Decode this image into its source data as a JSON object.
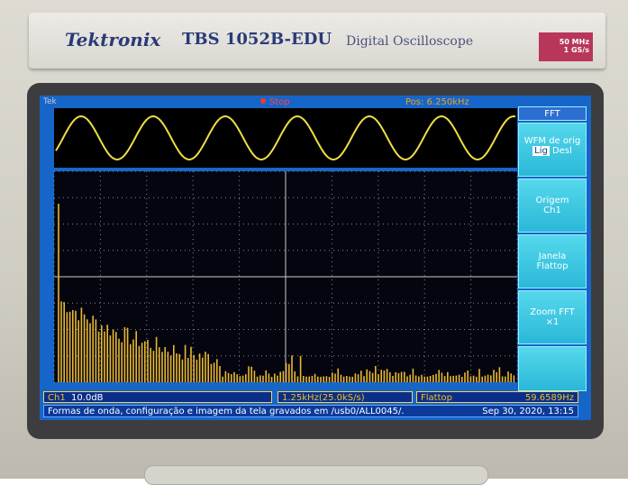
{
  "header": {
    "brand": "Tektronix",
    "model": "TBS 1052B-EDU",
    "product": "Digital Oscilloscope",
    "bandwidth": "50 MHz",
    "sample_rate": "1 GS/s"
  },
  "screen": {
    "top": {
      "brand": "Tek",
      "state": "Stop",
      "position": "Pos: 6.250kHz"
    },
    "menu": {
      "title": "FFT",
      "items": [
        {
          "label": "WFM de orig",
          "options": [
            "Lig",
            "Desl"
          ]
        },
        {
          "label": "Origem",
          "value": "Ch1"
        },
        {
          "label": "Janela",
          "value": "Flattop"
        },
        {
          "label": "Zoom FFT",
          "value": "×1"
        }
      ]
    },
    "status": {
      "channel": "Ch1",
      "scale": "10.0dB",
      "timebase": "1.25kHz(25.0kS/s)",
      "window": "Flattop",
      "frequency": "59.6589Hz"
    },
    "message": {
      "text": "Formas de onda, configuração e imagem da tela gravados em /usb0/ALL0045/.",
      "timestamp": "Sep 30, 2020, 13:15"
    }
  }
}
